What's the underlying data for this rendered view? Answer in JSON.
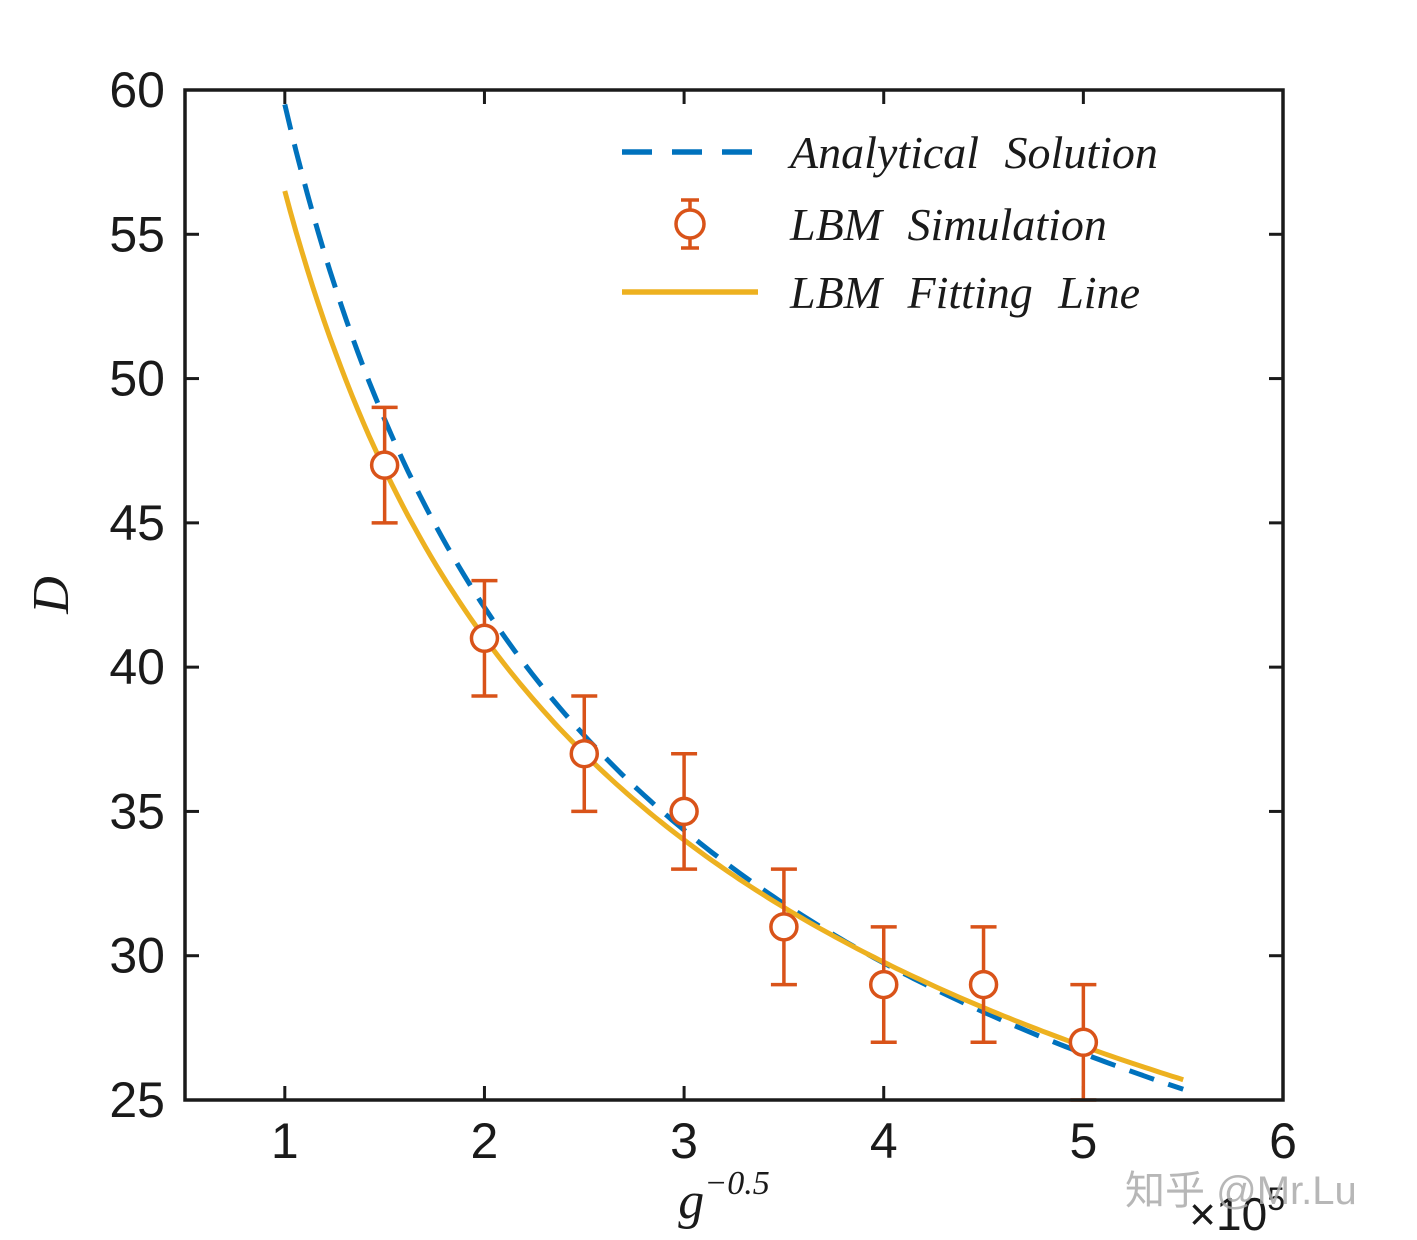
{
  "watermark": {
    "text": "知乎 @Mr.Lu"
  },
  "chart_data": {
    "type": "line",
    "title": "",
    "xlabel": {
      "base": "g",
      "sup": "−0.5"
    },
    "ylabel": "D",
    "axis_multiplier": {
      "base": "×10",
      "sup": "5"
    },
    "xlim": [
      0.5,
      6
    ],
    "ylim": [
      25,
      60
    ],
    "xticks": [
      1,
      2,
      3,
      4,
      5,
      6
    ],
    "yticks": [
      25,
      30,
      35,
      40,
      45,
      50,
      55,
      60
    ],
    "grid": false,
    "legend_position": "upper-right-inside",
    "series": [
      {
        "name": "Analytical Solution",
        "kind": "curve",
        "line_style": "dashed",
        "color": "#0072BD",
        "model": "y = a*x^b",
        "a": 59.5,
        "b": -0.5,
        "x_start": 1.0,
        "x_end": 5.5
      },
      {
        "name": "LBM Simulation",
        "kind": "scatter-errorbar",
        "marker": "circle",
        "color": "#D95319",
        "x": [
          1.5,
          2,
          2.5,
          3,
          3.5,
          4,
          4.5,
          5
        ],
        "y": [
          47,
          41,
          37,
          35,
          31,
          29,
          29,
          27
        ],
        "yerr": [
          2,
          2,
          2,
          2,
          2,
          2,
          2,
          2
        ]
      },
      {
        "name": "LBM Fitting Line",
        "kind": "curve",
        "line_style": "solid",
        "color": "#EDB120",
        "model": "y = a*x^b",
        "a": 56.5,
        "b": -0.462,
        "x_start": 1.0,
        "x_end": 5.5
      }
    ]
  }
}
